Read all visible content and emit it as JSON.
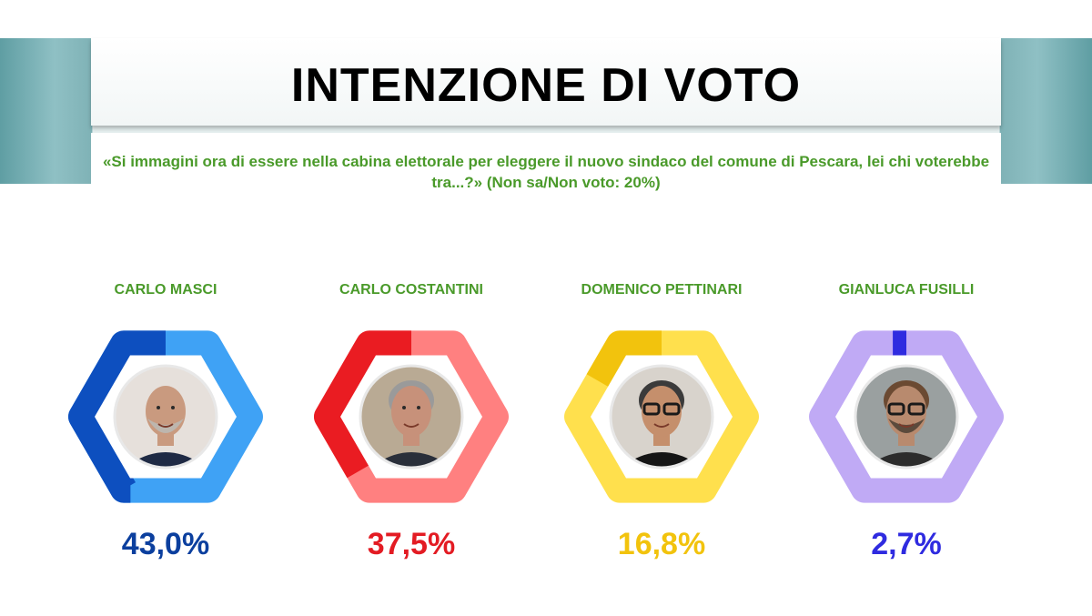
{
  "header": {
    "title": "INTENZIONE DI VOTO",
    "subtitle": "«Si immagini ora di essere nella cabina elettorale per eleggere il nuovo sindaco del comune di Pescara, lei chi voterebbe tra...?» (Non sa/Non voto: 20%)"
  },
  "chart_data": {
    "type": "pie",
    "title": "INTENZIONE DI VOTO",
    "categories": [
      "CARLO MASCI",
      "CARLO COSTANTINI",
      "DOMENICO PETTINARI",
      "GIANLUCA FUSILLI"
    ],
    "values": [
      43.0,
      37.5,
      16.8,
      2.7
    ],
    "labels": [
      "43,0%",
      "37,5%",
      "16,8%",
      "2,7%"
    ],
    "colors": {
      "filled": [
        "#0d4fbf",
        "#ea1c22",
        "#f2c30d",
        "#2f2be0"
      ],
      "track": [
        "#3fa2f5",
        "#ff8080",
        "#ffe04d",
        "#c0aaf5"
      ],
      "label": [
        "#0b3f9e",
        "#e31b23",
        "#f2c30d",
        "#2f2be0"
      ]
    }
  },
  "candidates": [
    {
      "name": "CARLO MASCI",
      "pct": "43,0%",
      "value": 43.0,
      "portrait": "bald-man-portrait-icon"
    },
    {
      "name": "CARLO COSTANTINI",
      "pct": "37,5%",
      "value": 37.5,
      "portrait": "gray-haired-man-portrait-icon"
    },
    {
      "name": "DOMENICO PETTINARI",
      "pct": "16,8%",
      "value": 16.8,
      "portrait": "man-with-glasses-portrait-icon"
    },
    {
      "name": "GIANLUCA FUSILLI",
      "pct": "2,7%",
      "value": 2.7,
      "portrait": "bearded-man-portrait-icon"
    }
  ]
}
